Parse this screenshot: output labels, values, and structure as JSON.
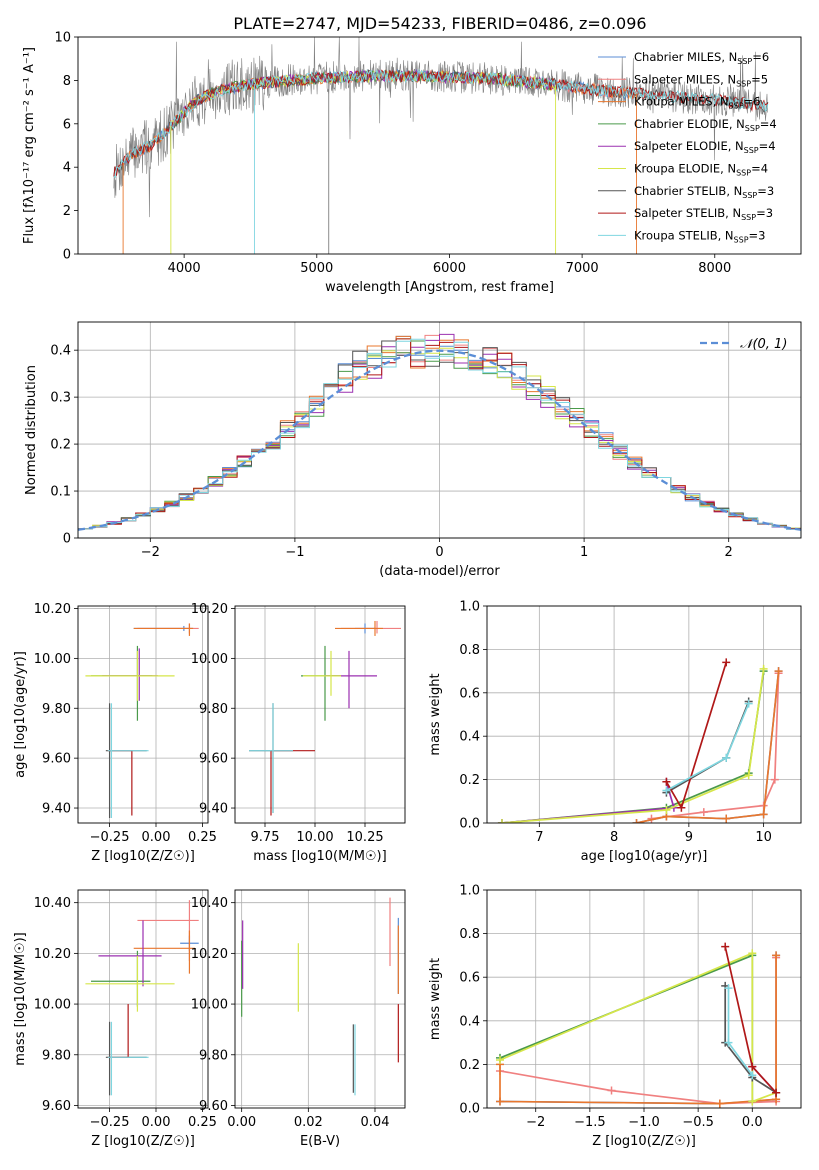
{
  "title": "PLATE=2747, MJD=54233, FIBERID=0486, z=0.096",
  "colors": {
    "Chabrier MILES": "#5b8ed6",
    "Salpeter MILES": "#f08080",
    "Kroupa MILES": "#e8772e",
    "Chabrier ELODIE": "#4a9a4a",
    "Salpeter ELODIE": "#9b30b0",
    "Kroupa ELODIE": "#d6e64a",
    "Chabrier STELIB": "#555555",
    "Salpeter STELIB": "#b01818",
    "Kroupa STELIB": "#7fd6e0",
    "pink": "#e377c2",
    "observed": "#808080",
    "gaussian": "#5b8ed6"
  },
  "chart_data": [
    {
      "id": "spectrum",
      "type": "line",
      "xlabel": "wavelength [Angstrom, rest frame]",
      "ylabel": "Flux [fλ10⁻¹⁷ erg cm⁻² s⁻¹ A⁻¹]",
      "xlim": [
        3200,
        8650
      ],
      "ylim": [
        0,
        10
      ],
      "xticks": [
        4000,
        5000,
        6000,
        7000,
        8000
      ],
      "yticks": [
        0,
        2,
        4,
        6,
        8,
        10
      ],
      "continuum": [
        [
          3470,
          3.7
        ],
        [
          3600,
          4.6
        ],
        [
          3750,
          5.0
        ],
        [
          3850,
          5.6
        ],
        [
          3950,
          6.2
        ],
        [
          4100,
          7.1
        ],
        [
          4300,
          7.6
        ],
        [
          4600,
          7.9
        ],
        [
          5000,
          8.1
        ],
        [
          5400,
          8.2
        ],
        [
          5800,
          8.2
        ],
        [
          6300,
          8.1
        ],
        [
          6800,
          7.8
        ],
        [
          7200,
          7.5
        ],
        [
          7600,
          7.3
        ],
        [
          8000,
          7.1
        ],
        [
          8400,
          6.8
        ]
      ],
      "legend": [
        "Chabrier MILES, N_SSP=6",
        "Salpeter MILES, N_SSP=5",
        "Kroupa MILES, N_SSP=6",
        "Chabrier ELODIE, N_SSP=4",
        "Salpeter ELODIE, N_SSP=4",
        "Kroupa ELODIE, N_SSP=4",
        "Chabrier STELIB, N_SSP=3",
        "Salpeter STELIB, N_SSP=3",
        "Kroupa STELIB, N_SSP=3"
      ],
      "legend_position": "upper right"
    },
    {
      "id": "histogram",
      "type": "line",
      "xlabel": "(data-model)/error",
      "ylabel": "Normed distribution",
      "xlim": [
        -2.5,
        2.5
      ],
      "ylim": [
        0,
        0.46
      ],
      "xticks": [
        -2,
        -1,
        0,
        1,
        2
      ],
      "yticks": [
        0.0,
        0.1,
        0.2,
        0.3,
        0.4
      ],
      "legend": [
        "𝒩(0, 1)"
      ],
      "legend_position": "upper right",
      "grid": true
    },
    {
      "id": "age_vs_Z",
      "type": "scatter",
      "xlabel": "Z [log10(Z/Z☉)]",
      "ylabel": "age [log10(age/yr)]",
      "xlim": [
        -0.42,
        0.28
      ],
      "ylim": [
        9.34,
        10.21
      ],
      "xticks": [
        -0.25,
        0.0,
        0.25
      ],
      "yticks": [
        9.4,
        9.6,
        9.8,
        10.0,
        10.2
      ],
      "points": [
        {
          "model": "Chabrier MILES",
          "x": 0.15,
          "y": 10.12,
          "xerr": [
            0.27,
            0.05
          ],
          "yerr": [
            0.01,
            0.01
          ]
        },
        {
          "model": "Salpeter MILES",
          "x": 0.18,
          "y": 10.12,
          "xerr": [
            0.28,
            0.05
          ],
          "yerr": [
            0.02,
            0.02
          ]
        },
        {
          "model": "Kroupa MILES",
          "x": 0.18,
          "y": 10.12,
          "xerr": [
            0.3,
            0.02
          ],
          "yerr": [
            0.03,
            0.02
          ]
        },
        {
          "model": "Chabrier ELODIE",
          "x": -0.1,
          "y": 9.93,
          "xerr": [
            0.25,
            0.08
          ],
          "yerr": [
            0.18,
            0.12
          ]
        },
        {
          "model": "Salpeter ELODIE",
          "x": -0.09,
          "y": 9.93,
          "xerr": [
            0.2,
            0.1
          ],
          "yerr": [
            0.1,
            0.11
          ]
        },
        {
          "model": "Kroupa ELODIE",
          "x": -0.1,
          "y": 9.93,
          "xerr": [
            0.28,
            0.2
          ],
          "yerr": [
            0.1,
            0.1
          ]
        },
        {
          "model": "Chabrier STELIB",
          "x": -0.25,
          "y": 9.63,
          "xerr": [
            0.02,
            0.2
          ],
          "yerr": [
            0.27,
            0.19
          ]
        },
        {
          "model": "Salpeter STELIB",
          "x": -0.13,
          "y": 9.63,
          "xerr": [
            0.13,
            0.0
          ],
          "yerr": [
            0.26,
            0.0
          ]
        },
        {
          "model": "Kroupa STELIB",
          "x": -0.24,
          "y": 9.63,
          "xerr": [
            0.02,
            0.2
          ],
          "yerr": [
            0.27,
            0.19
          ]
        }
      ]
    },
    {
      "id": "age_vs_mass",
      "type": "scatter",
      "xlabel": "mass [log10(M/M☉)]",
      "ylabel": "",
      "xlim": [
        9.6,
        10.45
      ],
      "ylim": [
        9.34,
        10.21
      ],
      "xticks": [
        9.75,
        10.0,
        10.25
      ],
      "yticks": [
        9.4,
        9.6,
        9.8,
        10.0,
        10.2
      ],
      "points": [
        {
          "model": "Chabrier MILES",
          "x": 10.25,
          "y": 10.12,
          "xerr": [
            0.05,
            0.05
          ],
          "yerr": [
            0.02,
            0.02
          ]
        },
        {
          "model": "Salpeter MILES",
          "x": 10.31,
          "y": 10.12,
          "xerr": [
            0.18,
            0.12
          ],
          "yerr": [
            0.02,
            0.03
          ]
        },
        {
          "model": "Kroupa MILES",
          "x": 10.3,
          "y": 10.12,
          "xerr": [
            0.2,
            0.04
          ],
          "yerr": [
            0.03,
            0.03
          ]
        },
        {
          "model": "Chabrier ELODIE",
          "x": 10.05,
          "y": 9.93,
          "xerr": [
            0.12,
            0.08
          ],
          "yerr": [
            0.18,
            0.12
          ]
        },
        {
          "model": "Salpeter ELODIE",
          "x": 10.17,
          "y": 9.93,
          "xerr": [
            0.12,
            0.14
          ],
          "yerr": [
            0.13,
            0.1
          ]
        },
        {
          "model": "Kroupa ELODIE",
          "x": 10.08,
          "y": 9.93,
          "xerr": [
            0.14,
            0.05
          ],
          "yerr": [
            0.08,
            0.1
          ]
        },
        {
          "model": "Chabrier STELIB",
          "x": 9.79,
          "y": 9.63,
          "xerr": [
            0.12,
            0.1
          ],
          "yerr": [
            0.25,
            0.19
          ]
        },
        {
          "model": "Salpeter STELIB",
          "x": 9.78,
          "y": 9.63,
          "xerr": [
            0.0,
            0.22
          ],
          "yerr": [
            0.26,
            0.0
          ]
        },
        {
          "model": "Kroupa STELIB",
          "x": 9.79,
          "y": 9.63,
          "xerr": [
            0.12,
            0.1
          ],
          "yerr": [
            0.25,
            0.19
          ]
        }
      ]
    },
    {
      "id": "weight_vs_age",
      "type": "line",
      "xlabel": "age [log10(age/yr)]",
      "ylabel": "mass weight",
      "xlim": [
        6.3,
        10.5
      ],
      "ylim": [
        0,
        1
      ],
      "xticks": [
        7,
        8,
        9,
        10
      ],
      "yticks": [
        0.0,
        0.2,
        0.4,
        0.6,
        0.8,
        1.0
      ],
      "grid": true,
      "series": [
        {
          "model": "Chabrier MILES",
          "points": [
            [
              8.3,
              0.0
            ],
            [
              8.7,
              0.03
            ],
            [
              9.5,
              0.02
            ],
            [
              10.0,
              0.04
            ],
            [
              10.2,
              0.7
            ]
          ]
        },
        {
          "model": "Salpeter MILES",
          "points": [
            [
              8.5,
              0.02
            ],
            [
              9.2,
              0.05
            ],
            [
              10.0,
              0.08
            ],
            [
              10.15,
              0.2
            ],
            [
              10.2,
              0.69
            ]
          ]
        },
        {
          "model": "Kroupa MILES",
          "points": [
            [
              8.3,
              0.0
            ],
            [
              8.7,
              0.03
            ],
            [
              9.5,
              0.02
            ],
            [
              10.0,
              0.04
            ],
            [
              10.2,
              0.7
            ]
          ]
        },
        {
          "model": "Chabrier ELODIE",
          "points": [
            [
              6.5,
              0.0
            ],
            [
              8.7,
              0.07
            ],
            [
              9.8,
              0.23
            ],
            [
              10.0,
              0.7
            ]
          ]
        },
        {
          "model": "Salpeter ELODIE",
          "points": [
            [
              6.5,
              0.0
            ],
            [
              8.8,
              0.07
            ],
            [
              8.7,
              0.19
            ]
          ]
        },
        {
          "model": "Kroupa ELODIE",
          "points": [
            [
              6.5,
              0.0
            ],
            [
              8.7,
              0.06
            ],
            [
              9.8,
              0.22
            ],
            [
              10.0,
              0.71
            ]
          ]
        },
        {
          "model": "Chabrier STELIB",
          "points": [
            [
              8.7,
              0.14
            ],
            [
              9.5,
              0.3
            ],
            [
              9.8,
              0.56
            ]
          ]
        },
        {
          "model": "Salpeter STELIB",
          "points": [
            [
              8.7,
              0.19
            ],
            [
              8.9,
              0.07
            ],
            [
              9.5,
              0.74
            ]
          ]
        },
        {
          "model": "Kroupa STELIB",
          "points": [
            [
              8.7,
              0.15
            ],
            [
              9.5,
              0.3
            ],
            [
              9.8,
              0.55
            ]
          ]
        }
      ]
    },
    {
      "id": "mass_vs_Z",
      "type": "scatter",
      "xlabel": "Z [log10(Z/Z☉)]",
      "ylabel": "mass [log10(M/M☉)]",
      "xlim": [
        -0.42,
        0.28
      ],
      "ylim": [
        9.59,
        10.45
      ],
      "xticks": [
        -0.25,
        0.0,
        0.25
      ],
      "yticks": [
        9.6,
        9.8,
        10.0,
        10.2,
        10.4
      ],
      "points": [
        {
          "model": "Chabrier MILES",
          "x": 0.18,
          "y": 10.24,
          "xerr": [
            0.05,
            0.05
          ],
          "yerr": [
            0.03,
            0.03
          ]
        },
        {
          "model": "Salpeter MILES",
          "x": 0.18,
          "y": 10.33,
          "xerr": [
            0.28,
            0.05
          ],
          "yerr": [
            0.16,
            0.08
          ]
        },
        {
          "model": "Kroupa MILES",
          "x": 0.18,
          "y": 10.22,
          "xerr": [
            0.3,
            0.03
          ],
          "yerr": [
            0.1,
            0.07
          ]
        },
        {
          "model": "Chabrier ELODIE",
          "x": -0.1,
          "y": 10.09,
          "xerr": [
            0.25,
            0.07
          ],
          "yerr": [
            0.1,
            0.12
          ]
        },
        {
          "model": "Salpeter ELODIE",
          "x": -0.07,
          "y": 10.19,
          "xerr": [
            0.24,
            0.1
          ],
          "yerr": [
            0.12,
            0.14
          ]
        },
        {
          "model": "Kroupa ELODIE",
          "x": -0.1,
          "y": 10.08,
          "xerr": [
            0.28,
            0.2
          ],
          "yerr": [
            0.11,
            0.11
          ]
        },
        {
          "model": "Chabrier STELIB",
          "x": -0.25,
          "y": 9.79,
          "xerr": [
            0.02,
            0.2
          ],
          "yerr": [
            0.15,
            0.14
          ]
        },
        {
          "model": "Salpeter STELIB",
          "x": -0.15,
          "y": 9.79,
          "xerr": [
            0.11,
            0.0
          ],
          "yerr": [
            0.0,
            0.21
          ]
        },
        {
          "model": "Kroupa STELIB",
          "x": -0.24,
          "y": 9.79,
          "xerr": [
            0.02,
            0.2
          ],
          "yerr": [
            0.15,
            0.14
          ]
        }
      ]
    },
    {
      "id": "mass_vs_ebv",
      "type": "scatter",
      "xlabel": "E(B-V)",
      "ylabel": "",
      "xlim": [
        -0.002,
        0.049
      ],
      "ylim": [
        9.59,
        10.45
      ],
      "xticks": [
        0.0,
        0.02,
        0.04
      ],
      "yticks": [
        9.6,
        9.8,
        10.0,
        10.2,
        10.4
      ],
      "points": [
        {
          "model": "Chabrier MILES",
          "x": 0.047,
          "y": 10.22,
          "yerr": [
            0.18,
            0.12
          ]
        },
        {
          "model": "Salpeter MILES",
          "x": 0.0445,
          "y": 10.33,
          "yerr": [
            0.18,
            0.09
          ]
        },
        {
          "model": "Kroupa MILES",
          "x": 0.047,
          "y": 10.18,
          "yerr": [
            0.14,
            0.13
          ]
        },
        {
          "model": "Chabrier ELODIE",
          "x": 0.0,
          "y": 10.13,
          "yerr": [
            0.18,
            0.12
          ]
        },
        {
          "model": "Salpeter ELODIE",
          "x": 0.0003,
          "y": 10.19,
          "yerr": [
            0.13,
            0.14
          ]
        },
        {
          "model": "Kroupa ELODIE",
          "x": 0.017,
          "y": 10.1,
          "yerr": [
            0.13,
            0.14
          ]
        },
        {
          "model": "Chabrier STELIB",
          "x": 0.0335,
          "y": 9.78,
          "yerr": [
            0.13,
            0.14
          ]
        },
        {
          "model": "Salpeter STELIB",
          "x": 0.047,
          "y": 9.89,
          "yerr": [
            0.12,
            0.11
          ]
        },
        {
          "model": "Kroupa STELIB",
          "x": 0.034,
          "y": 9.79,
          "yerr": [
            0.15,
            0.13
          ]
        }
      ]
    },
    {
      "id": "weight_vs_Z",
      "type": "line",
      "xlabel": "Z [log10(Z/Z☉)]",
      "ylabel": "mass weight",
      "xlim": [
        -2.45,
        0.45
      ],
      "ylim": [
        0,
        1
      ],
      "xticks": [
        -2.0,
        -1.5,
        -1.0,
        -0.5,
        0.0
      ],
      "yticks": [
        0.0,
        0.2,
        0.4,
        0.6,
        0.8,
        1.0
      ],
      "grid": true,
      "series": [
        {
          "model": "Chabrier MILES",
          "points": [
            [
              -2.33,
              0.03
            ],
            [
              -0.3,
              0.02
            ],
            [
              0.0,
              0.03
            ],
            [
              0.22,
              0.04
            ],
            [
              0.22,
              0.7
            ]
          ]
        },
        {
          "model": "Salpeter MILES",
          "points": [
            [
              -2.33,
              0.17
            ],
            [
              -1.3,
              0.08
            ],
            [
              -0.3,
              0.02
            ],
            [
              0.22,
              0.03
            ],
            [
              0.22,
              0.69
            ]
          ]
        },
        {
          "model": "Kroupa MILES",
          "points": [
            [
              -2.33,
              0.2
            ],
            [
              -2.33,
              0.03
            ],
            [
              -0.3,
              0.02
            ],
            [
              0.22,
              0.04
            ],
            [
              0.22,
              0.7
            ]
          ]
        },
        {
          "model": "Chabrier ELODIE",
          "points": [
            [
              -2.33,
              0.23
            ],
            [
              0.0,
              0.7
            ],
            [
              0.0,
              0.03
            ]
          ]
        },
        {
          "model": "Salpeter ELODIE",
          "points": [
            [
              0.22,
              0.07
            ],
            [
              0.0,
              0.19
            ]
          ]
        },
        {
          "model": "Kroupa ELODIE",
          "points": [
            [
              -2.33,
              0.22
            ],
            [
              0.0,
              0.71
            ],
            [
              0.0,
              0.03
            ],
            [
              0.22,
              0.07
            ]
          ]
        },
        {
          "model": "Chabrier STELIB",
          "points": [
            [
              -0.25,
              0.56
            ],
            [
              -0.25,
              0.3
            ],
            [
              0.0,
              0.14
            ],
            [
              0.22,
              0.07
            ]
          ]
        },
        {
          "model": "Salpeter STELIB",
          "points": [
            [
              -0.25,
              0.74
            ],
            [
              0.0,
              0.19
            ],
            [
              0.22,
              0.07
            ]
          ]
        },
        {
          "model": "Kroupa STELIB",
          "points": [
            [
              -0.22,
              0.55
            ],
            [
              -0.22,
              0.3
            ],
            [
              0.0,
              0.15
            ]
          ]
        }
      ]
    }
  ]
}
